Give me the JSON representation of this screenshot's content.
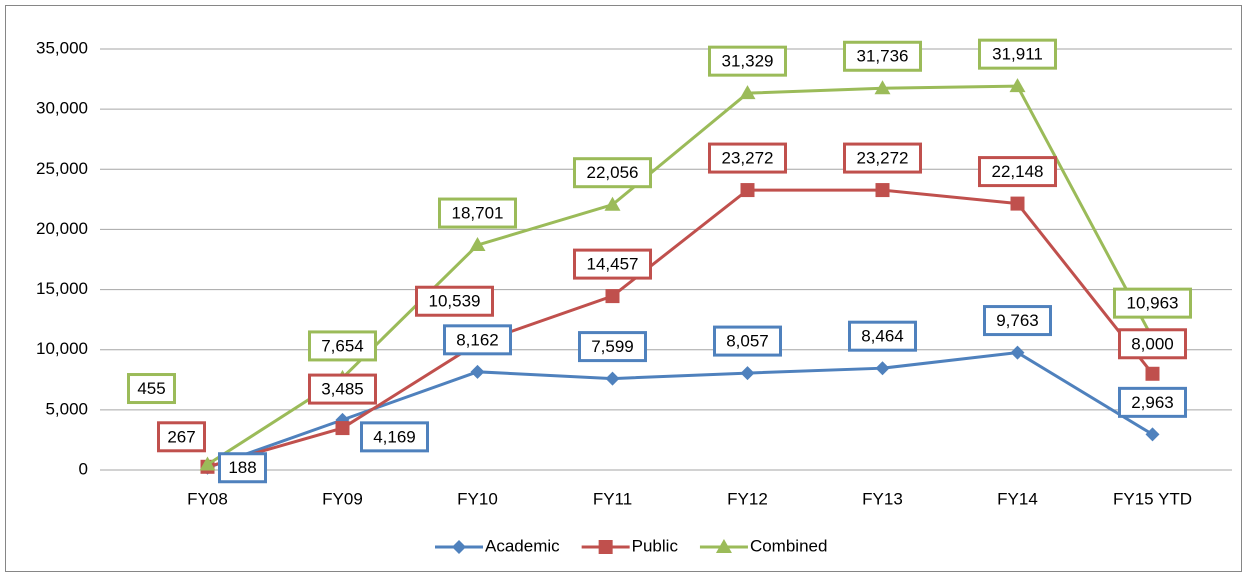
{
  "chart_data": {
    "type": "line",
    "categories": [
      "FY08",
      "FY09",
      "FY10",
      "FY11",
      "FY12",
      "FY13",
      "FY14",
      "FY15 YTD"
    ],
    "series": [
      {
        "name": "Academic",
        "color": "#4f81bd",
        "values": [
          188,
          4169,
          8162,
          7599,
          8057,
          8464,
          9763,
          2963
        ],
        "value_labels": [
          "188",
          "4,169",
          "8,162",
          "7,599",
          "8,057",
          "8,464",
          "9,763",
          "2,963"
        ]
      },
      {
        "name": "Public",
        "color": "#c0504d",
        "values": [
          267,
          3485,
          10539,
          14457,
          23272,
          23272,
          22148,
          8000
        ],
        "value_labels": [
          "267",
          "3,485",
          "10,539",
          "14,457",
          "23,272",
          "23,272",
          "22,148",
          "8,000"
        ]
      },
      {
        "name": "Combined",
        "color": "#9bbb59",
        "values": [
          455,
          7654,
          18701,
          22056,
          31329,
          31736,
          31911,
          10963
        ],
        "value_labels": [
          "455",
          "7,654",
          "18,701",
          "22,056",
          "31,329",
          "31,736",
          "31,911",
          "10,963"
        ]
      }
    ],
    "ylim": [
      0,
      35000
    ],
    "yticks": [
      0,
      {
        "value": 5000,
        "label": "5,000"
      },
      {
        "value": 10000,
        "label": "10,000"
      },
      {
        "value": 15000,
        "label": "15,000"
      },
      {
        "value": 20000,
        "label": "20,000"
      },
      {
        "value": 25000,
        "label": "25,000"
      },
      {
        "value": 30000,
        "label": "30,000"
      },
      {
        "value": 35000,
        "label": "35,000"
      }
    ],
    "grid": true,
    "legend": "bottom"
  }
}
